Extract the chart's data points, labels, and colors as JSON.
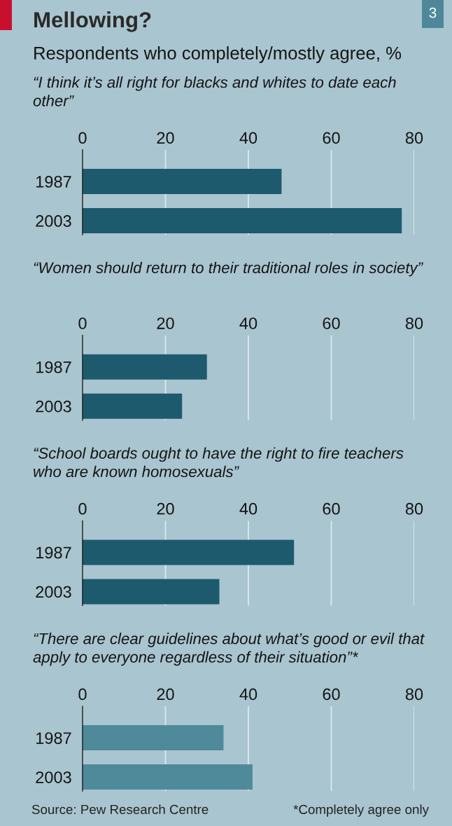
{
  "chart_data": [
    {
      "type": "bar",
      "orientation": "horizontal",
      "title": "Mellowing?",
      "subtitle": "“I think it’s all right for blacks and whites to date each other”",
      "annotations": [
        "Respondents who completely/mostly agree, %",
        "3"
      ],
      "categories": [
        "1987",
        "2003"
      ],
      "values": [
        48,
        77
      ],
      "color": "#1e5a6e",
      "xlim": [
        0,
        80
      ],
      "xticks": [
        0,
        20,
        40,
        60,
        80
      ],
      "grid": "x"
    },
    {
      "type": "bar",
      "orientation": "horizontal",
      "subtitle": "“Women should return to their traditional roles in society”",
      "categories": [
        "1987",
        "2003"
      ],
      "values": [
        30,
        24
      ],
      "color": "#1e5a6e",
      "xlim": [
        0,
        80
      ],
      "xticks": [
        0,
        20,
        40,
        60,
        80
      ],
      "grid": "x"
    },
    {
      "type": "bar",
      "orientation": "horizontal",
      "subtitle": "“School boards ought to have the right to fire teachers who are known homosexuals”",
      "categories": [
        "1987",
        "2003"
      ],
      "values": [
        51,
        33
      ],
      "color": "#1e5a6e",
      "xlim": [
        0,
        80
      ],
      "xticks": [
        0,
        20,
        40,
        60,
        80
      ],
      "grid": "x"
    },
    {
      "type": "bar",
      "orientation": "horizontal",
      "subtitle": "“There are clear guidelines about what’s good or evil that apply to everyone regardless of their situation”*",
      "annotations": [
        "Source: Pew Research Centre",
        "*Completely agree only"
      ],
      "categories": [
        "1987",
        "2003"
      ],
      "values": [
        34,
        41
      ],
      "color": "#4f8a9b",
      "xlim": [
        0,
        80
      ],
      "xticks": [
        0,
        20,
        40,
        60,
        80
      ],
      "grid": "x"
    }
  ]
}
